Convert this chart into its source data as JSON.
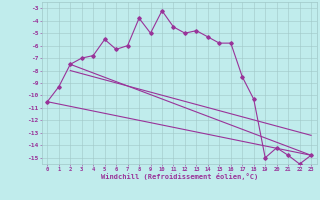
{
  "xlabel": "Windchill (Refroidissement éolien,°C)",
  "bg_color": "#c0ecec",
  "line_color": "#993399",
  "grid_color": "#a0c8c8",
  "x_hours": [
    0,
    1,
    2,
    3,
    4,
    5,
    6,
    7,
    8,
    9,
    10,
    11,
    12,
    13,
    14,
    15,
    16,
    17,
    18,
    19,
    20,
    21,
    22,
    23
  ],
  "windchill": [
    -10.5,
    -9.3,
    -7.5,
    -7.0,
    -6.8,
    -5.5,
    -6.3,
    -6.0,
    -3.8,
    -5.0,
    -3.2,
    -4.5,
    -5.0,
    -4.8,
    -5.3,
    -5.8,
    -5.8,
    -8.5,
    -10.3,
    -15.0,
    -14.2,
    -14.8,
    -15.5,
    -14.8
  ],
  "trend_lines": [
    {
      "x": [
        0,
        23
      ],
      "y": [
        -10.5,
        -14.8
      ]
    },
    {
      "x": [
        2,
        23
      ],
      "y": [
        -7.5,
        -14.8
      ]
    },
    {
      "x": [
        2,
        23
      ],
      "y": [
        -8.0,
        -13.2
      ]
    }
  ],
  "ylim": [
    -15.5,
    -2.5
  ],
  "xlim": [
    -0.5,
    23.5
  ],
  "yticks": [
    -3,
    -4,
    -5,
    -6,
    -7,
    -8,
    -9,
    -10,
    -11,
    -12,
    -13,
    -14,
    -15
  ],
  "xticks": [
    0,
    1,
    2,
    3,
    4,
    5,
    6,
    7,
    8,
    9,
    10,
    11,
    12,
    13,
    14,
    15,
    16,
    17,
    18,
    19,
    20,
    21,
    22,
    23
  ]
}
